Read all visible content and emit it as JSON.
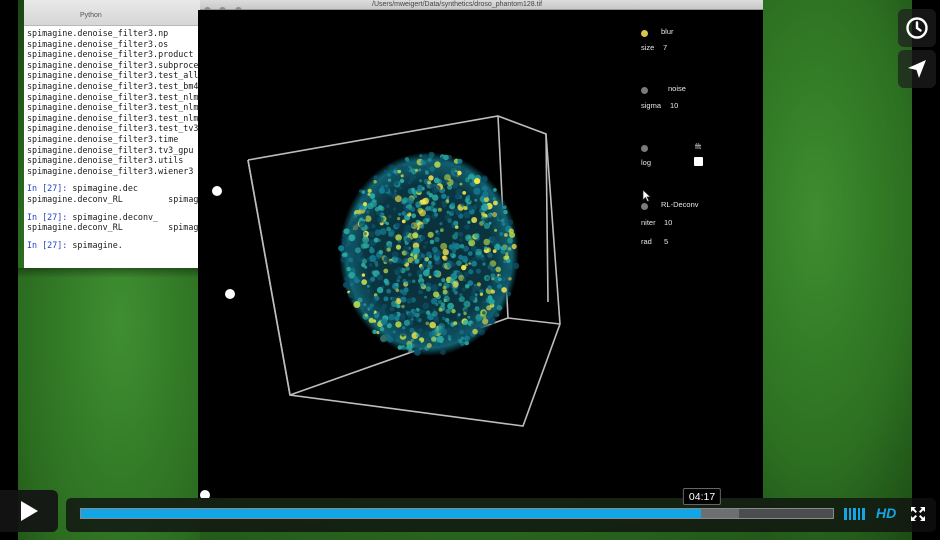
{
  "terminal": {
    "tab_title": "Python",
    "lines": [
      {
        "text": "spimagine.denoise_filter3.np"
      },
      {
        "text": "spimagine.denoise_filter3.os"
      },
      {
        "text": "spimagine.denoise_filter3.product"
      },
      {
        "text": "spimagine.denoise_filter3.subproce"
      },
      {
        "text": "spimagine.denoise_filter3.test_all"
      },
      {
        "text": "spimagine.denoise_filter3.test_bm4"
      },
      {
        "text": "spimagine.denoise_filter3.test_nlm"
      },
      {
        "text": "spimagine.denoise_filter3.test_nlm"
      },
      {
        "text": "spimagine.denoise_filter3.test_nlm"
      },
      {
        "text": "spimagine.denoise_filter3.test_tv3"
      },
      {
        "text": "spimagine.denoise_filter3.time"
      },
      {
        "text": "spimagine.denoise_filter3.tv3_gpu"
      },
      {
        "text": "spimagine.denoise_filter3.utils"
      },
      {
        "text": "spimagine.denoise_filter3.wiener3"
      }
    ],
    "blocks": [
      {
        "prompt": "In [27]:",
        "cmd": " spimagine.dec",
        "out": "spimagine.deconv_RL         spimagine"
      },
      {
        "prompt": "In [27]:",
        "cmd": " spimagine.deconv_",
        "out": "spimagine.deconv_RL         spimagine"
      },
      {
        "prompt": "In [27]:",
        "cmd": " spimagine.",
        "out": ""
      }
    ]
  },
  "viewer": {
    "path": "/Users/mweigert/Data/synthetics/droso_phantom128.tif",
    "panel": {
      "blur_label": "blur",
      "size_label": "size",
      "size_value": "7",
      "noise_label": "noise",
      "sigma_label": "sigma",
      "sigma_value": "10",
      "fft_label": "fft",
      "log_label": "log",
      "rl_label": "RL-Deconv",
      "niter_label": "niter",
      "niter_value": "10",
      "rad_label": "rad",
      "rad_value": "5"
    }
  },
  "player": {
    "hover_time": "04:17",
    "progress": 0.825,
    "hover_fraction": 0.825,
    "hd_label": "HD",
    "accent": "#12a6e6"
  },
  "icons": {
    "play": "play-icon",
    "watch_later": "clock-icon",
    "share": "send-icon",
    "volume": "volume-bars-icon",
    "fullscreen": "fullscreen-icon"
  }
}
